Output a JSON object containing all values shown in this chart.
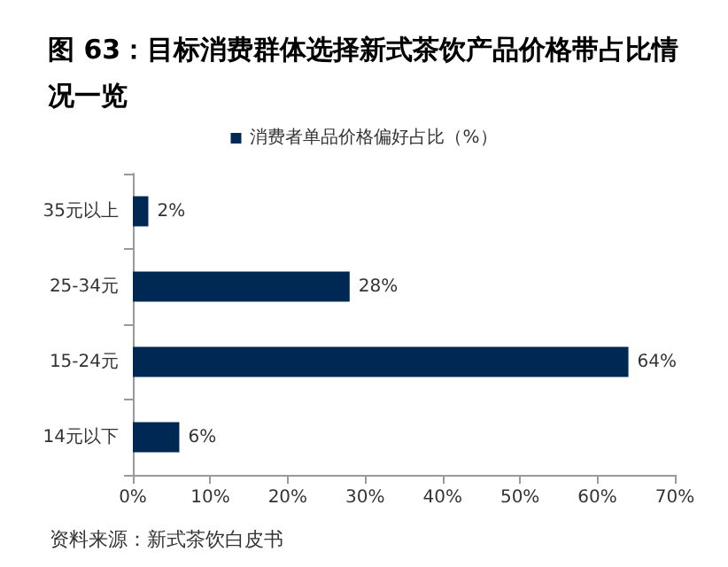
{
  "chart_data": {
    "type": "bar",
    "orientation": "horizontal",
    "title": "图 63：目标消费群体选择新式茶饮产品价格带占比情况一览",
    "categories": [
      "35元以上",
      "25-34元",
      "15-24元",
      "14元以下"
    ],
    "series": [
      {
        "name": "消费者单品价格偏好占比（%）",
        "color": "#002855",
        "values": [
          2,
          28,
          64,
          6
        ]
      }
    ],
    "value_labels": [
      "2%",
      "28%",
      "64%",
      "6%"
    ],
    "xlim": [
      0,
      70
    ],
    "xticks": [
      {
        "value": 0,
        "label": "0%"
      },
      {
        "value": 10,
        "label": "10%"
      },
      {
        "value": 20,
        "label": "20%"
      },
      {
        "value": 30,
        "label": "30%"
      },
      {
        "value": 40,
        "label": "40%"
      },
      {
        "value": 50,
        "label": "50%"
      },
      {
        "value": 60,
        "label": "60%"
      },
      {
        "value": 70,
        "label": "70%"
      }
    ],
    "grid": false,
    "legend": "top",
    "annotations": [
      "资料来源：新式茶饮白皮书"
    ]
  }
}
